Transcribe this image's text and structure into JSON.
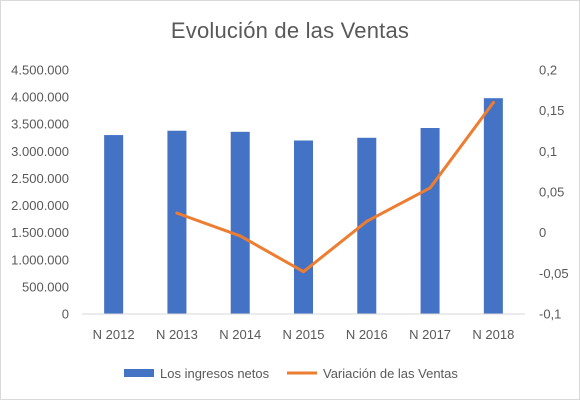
{
  "chart_data": {
    "type": "bar",
    "title": "Evolución de las Ventas",
    "categories": [
      "N 2012",
      "N 2013",
      "N 2014",
      "N 2015",
      "N 2016",
      "N 2017",
      "N 2018"
    ],
    "series": [
      {
        "name": "Los ingresos netos",
        "type": "bar",
        "axis": "left",
        "color": "#4472C4",
        "values": [
          3300000,
          3380000,
          3360000,
          3200000,
          3250000,
          3430000,
          3980000
        ]
      },
      {
        "name": "Variación de las Ventas",
        "type": "line",
        "axis": "right",
        "color": "#ED7D31",
        "values": [
          null,
          0.024,
          -0.004,
          -0.048,
          0.014,
          0.055,
          0.16
        ]
      }
    ],
    "y_left": {
      "ylim": [
        0,
        4500000
      ],
      "ticks": [
        "0",
        "500.000",
        "1.000.000",
        "1.500.000",
        "2.000.000",
        "2.500.000",
        "3.000.000",
        "3.500.000",
        "4.000.000",
        "4.500.000"
      ]
    },
    "y_right": {
      "ylim": [
        -0.1,
        0.2
      ],
      "ticks": [
        "-0,1",
        "-0,05",
        "0",
        "0,05",
        "0,1",
        "0,15",
        "0,2"
      ]
    },
    "grid": false,
    "legend_position": "bottom"
  }
}
